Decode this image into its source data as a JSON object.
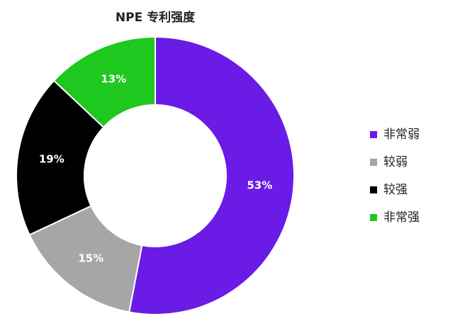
{
  "chart_data": {
    "type": "donut",
    "title": "NPE 专利强度",
    "categories": [
      "非常弱",
      "较弱",
      "较强",
      "非常强"
    ],
    "values": [
      53,
      15,
      19,
      13
    ],
    "value_labels": [
      "53%",
      "15%",
      "19%",
      "13%"
    ],
    "colors": [
      "#6a1be6",
      "#a6a6a8",
      "#000000",
      "#1ec81e"
    ],
    "legend": "right"
  }
}
